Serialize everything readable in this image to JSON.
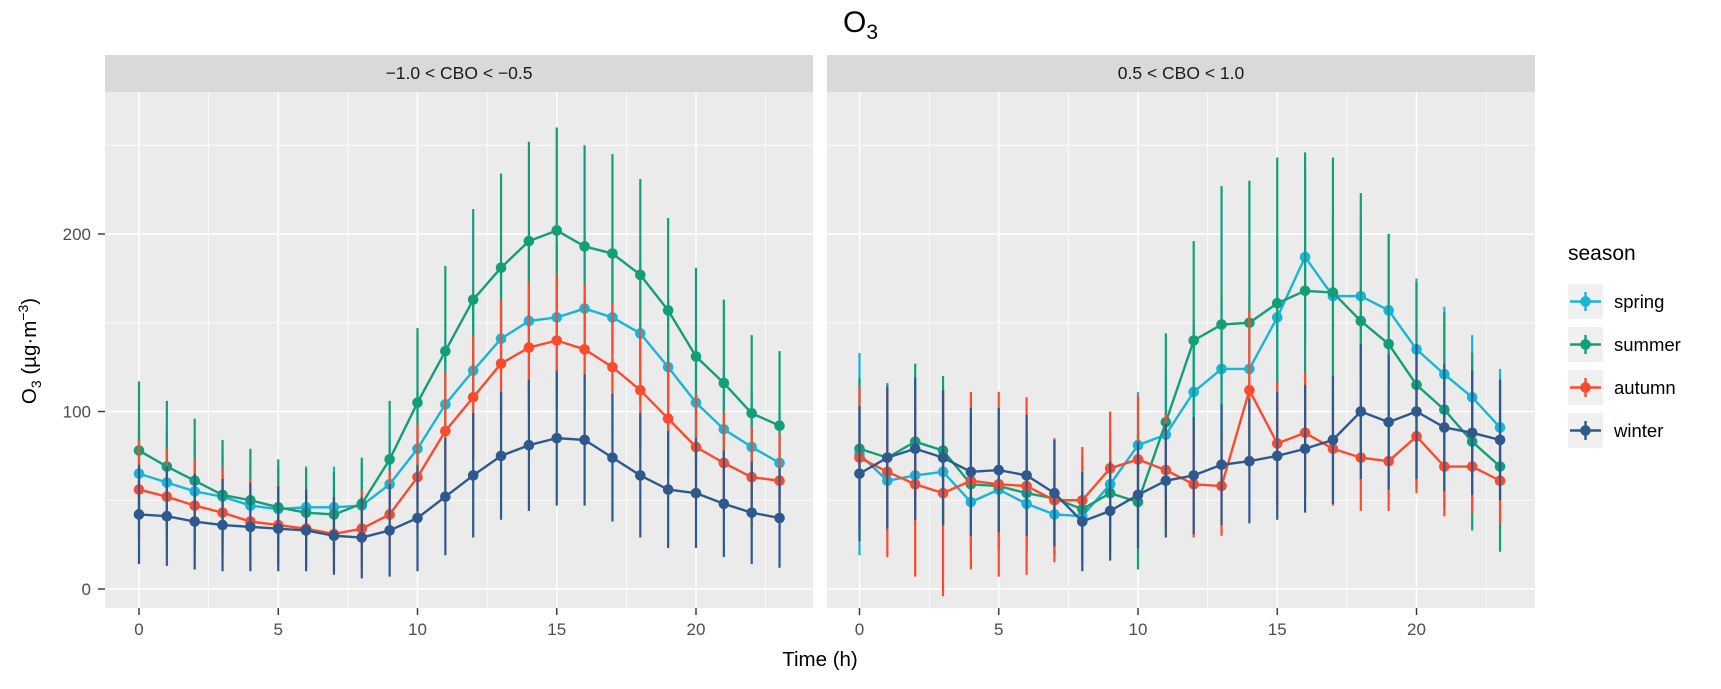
{
  "title": {
    "main": "O",
    "sub": "3"
  },
  "axes": {
    "y_title_parts": {
      "base1": "O",
      "sub": "3",
      "base2": " (µg·m",
      "sup": "−3",
      "base3": ")"
    }
  },
  "legend": {
    "title": "season",
    "items": [
      {
        "label": "spring",
        "color": "#17B5D8"
      },
      {
        "label": "summer",
        "color": "#129E78"
      },
      {
        "label": "autumn",
        "color": "#FB4B2F"
      },
      {
        "label": "winter",
        "color": "#2F598C"
      }
    ]
  },
  "colors": {
    "panel_bg": "#EBEBEB",
    "strip_bg": "#D9D9D9",
    "grid": "#FFFFFF",
    "tick_text": "#4D4D4D",
    "tick_mark": "#333333"
  },
  "chart_data": {
    "type": "line",
    "title": "O3",
    "xlabel": "Time (h)",
    "ylabel": "O3 (µg·m−3)",
    "x": [
      0,
      1,
      2,
      3,
      4,
      5,
      6,
      7,
      8,
      9,
      10,
      11,
      12,
      13,
      14,
      15,
      16,
      17,
      18,
      19,
      20,
      21,
      22,
      23
    ],
    "x_ticks": [
      0,
      5,
      10,
      15,
      20
    ],
    "y_ticks": [
      0,
      100,
      200
    ],
    "ylim": [
      -11,
      280
    ],
    "grid": "on",
    "legend_position": "right",
    "error_bars": "mean ± sd, no caps",
    "panels": [
      {
        "facet_label": "−1.0 < CBO < −0.5",
        "series": [
          {
            "name": "spring",
            "color": "#17B5D8",
            "mean": [
              65,
              60,
              55,
              52,
              47,
              45,
              46,
              46,
              47,
              59,
              79,
              104,
              123,
              141,
              151,
              153,
              158,
              153,
              144,
              125,
              105,
              90,
              80,
              71
            ],
            "sd": [
              30,
              29,
              28,
              26,
              25,
              24,
              23,
              23,
              24,
              27,
              32,
              36,
              38,
              40,
              41,
              42,
              42,
              41,
              40,
              38,
              36,
              34,
              32,
              30
            ]
          },
          {
            "name": "summer",
            "color": "#129E78",
            "mean": [
              78,
              69,
              61,
              53,
              50,
              46,
              43,
              42,
              48,
              73,
              105,
              134,
              163,
              181,
              196,
              202,
              193,
              189,
              177,
              157,
              131,
              116,
              99,
              92
            ],
            "sd": [
              39,
              37,
              35,
              31,
              29,
              27,
              25,
              24,
              26,
              33,
              42,
              48,
              51,
              53,
              56,
              58,
              57,
              56,
              54,
              52,
              50,
              47,
              44,
              42
            ]
          },
          {
            "name": "autumn",
            "color": "#FB4B2F",
            "mean": [
              56,
              52,
              47,
              43,
              38,
              36,
              34,
              31,
              34,
              42,
              63,
              89,
              108,
              127,
              136,
              140,
              135,
              125,
              112,
              96,
              80,
              71,
              63,
              61
            ],
            "sd": [
              28,
              27,
              26,
              25,
              24,
              23,
              22,
              21,
              22,
              25,
              30,
              33,
              35,
              36,
              37,
              38,
              37,
              36,
              34,
              32,
              30,
              29,
              28,
              27
            ]
          },
          {
            "name": "winter",
            "color": "#2F598C",
            "mean": [
              42,
              41,
              38,
              36,
              35,
              34,
              33,
              30,
              29,
              33,
              40,
              52,
              64,
              75,
              81,
              85,
              84,
              74,
              64,
              56,
              54,
              48,
              43,
              40
            ],
            "sd": [
              28,
              28,
              27,
              26,
              25,
              24,
              23,
              22,
              23,
              26,
              30,
              33,
              35,
              36,
              37,
              38,
              37,
              36,
              35,
              33,
              31,
              30,
              29,
              28
            ]
          }
        ]
      },
      {
        "facet_label": "0.5 < CBO < 1.0",
        "series": [
          {
            "name": "spring",
            "color": "#17B5D8",
            "mean": [
              76,
              61,
              64,
              66,
              49,
              56,
              48,
              42,
              41,
              59,
              81,
              87,
              111,
              124,
              124,
              153,
              187,
              165,
              165,
              157,
              135,
              121,
              108,
              91
            ],
            "sd": [
              57,
              30,
              28,
              30,
              25,
              26,
              24,
              22,
              22,
              26,
              30,
              34,
              38,
              40,
              42,
              45,
              48,
              46,
              45,
              43,
              40,
              38,
              35,
              33
            ]
          },
          {
            "name": "summer",
            "color": "#129E78",
            "mean": [
              79,
              74,
              83,
              78,
              59,
              58,
              54,
              51,
              45,
              54,
              49,
              94,
              140,
              149,
              150,
              161,
              168,
              167,
              151,
              138,
              115,
              101,
              83,
              69
            ],
            "sd": [
              40,
              42,
              44,
              42,
              38,
              36,
              34,
              32,
              30,
              34,
              38,
              50,
              56,
              78,
              80,
              82,
              78,
              76,
              72,
              62,
              58,
              55,
              50,
              48
            ]
          },
          {
            "name": "autumn",
            "color": "#FB4B2F",
            "mean": [
              74,
              66,
              59,
              54,
              61,
              59,
              58,
              50,
              50,
              68,
              73,
              67,
              59,
              58,
              112,
              82,
              88,
              79,
              74,
              72,
              86,
              69,
              69,
              61
            ],
            "sd": [
              40,
              48,
              52,
              58,
              50,
              52,
              50,
              35,
              30,
              32,
              36,
              32,
              30,
              28,
              45,
              35,
              34,
              32,
              30,
              28,
              32,
              28,
              26,
              24
            ]
          },
          {
            "name": "winter",
            "color": "#2F598C",
            "mean": [
              65,
              74,
              79,
              74,
              66,
              67,
              64,
              54,
              38,
              44,
              53,
              61,
              64,
              70,
              72,
              75,
              79,
              84,
              100,
              94,
              100,
              91,
              88,
              84
            ],
            "sd": [
              38,
              40,
              40,
              38,
              36,
              35,
              34,
              30,
              28,
              28,
              30,
              32,
              33,
              34,
              35,
              36,
              36,
              36,
              38,
              38,
              38,
              36,
              35,
              34
            ]
          }
        ]
      }
    ]
  }
}
